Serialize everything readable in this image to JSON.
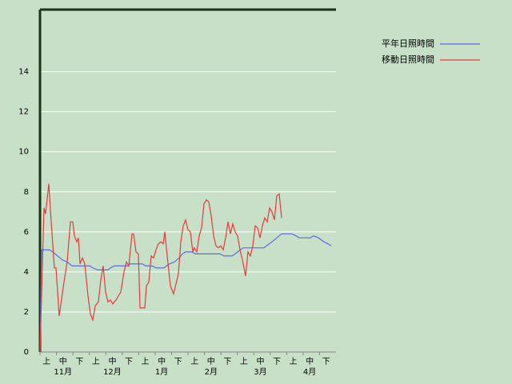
{
  "chart_data": {
    "type": "line",
    "categories": [
      "上",
      "中",
      "下",
      "上",
      "中",
      "下",
      "上",
      "中",
      "下",
      "上",
      "中",
      "下",
      "上",
      "中",
      "下",
      "上",
      "中",
      "下"
    ],
    "month_labels": [
      "11月",
      "12月",
      "1月",
      "2月",
      "3月",
      "4月"
    ],
    "xlim": [
      0,
      185
    ],
    "ylim": [
      0,
      17.1
    ],
    "yticks": [
      0,
      2,
      4,
      6,
      8,
      10,
      12,
      14
    ],
    "grid": true,
    "legend": "top-right",
    "series": [
      {
        "name": "平年日照時間",
        "color": "#5a6ee0",
        "x": [
          0,
          1,
          6,
          8,
          11,
          14,
          17,
          20,
          31,
          33,
          36,
          42.5,
          44,
          46.5,
          55,
          56,
          64,
          66,
          70,
          72.5,
          77.5,
          79,
          81,
          84,
          87,
          89,
          91,
          95,
          97,
          112.5,
          115,
          120,
          122,
          123.5,
          127,
          140,
          141.5,
          145,
          148,
          151,
          157.5,
          160,
          162,
          169,
          171,
          174,
          177.5,
          180,
          182
        ],
        "values": [
          0,
          5.1,
          5.1,
          5.0,
          4.8,
          4.6,
          4.5,
          4.3,
          4.3,
          4.2,
          4.1,
          4.1,
          4.2,
          4.3,
          4.3,
          4.4,
          4.4,
          4.3,
          4.3,
          4.2,
          4.2,
          4.3,
          4.4,
          4.5,
          4.7,
          4.9,
          5.0,
          5.0,
          4.9,
          4.9,
          4.8,
          4.8,
          4.9,
          5.0,
          5.2,
          5.2,
          5.3,
          5.5,
          5.7,
          5.9,
          5.9,
          5.8,
          5.7,
          5.7,
          5.8,
          5.7,
          5.5,
          5.4,
          5.3
        ]
      },
      {
        "name": "移動日照時間",
        "color": "#e83a3a",
        "x": [
          0,
          2.5,
          3.5,
          5.5,
          7,
          9,
          10,
          12,
          15,
          17,
          19,
          20.5,
          21.5,
          23,
          24,
          25,
          26.5,
          28,
          30,
          31.5,
          33,
          34.5,
          36.5,
          38,
          39.5,
          41,
          42.5,
          44,
          45.5,
          47.5,
          49,
          50.5,
          52.5,
          54,
          55.5,
          57.5,
          58.5,
          60,
          61.5,
          62.5,
          64,
          65.5,
          66.5,
          68,
          69.5,
          71,
          72.5,
          74,
          75.5,
          77,
          78,
          79.5,
          81.5,
          83.5,
          85,
          86.5,
          88,
          89.5,
          91,
          92.5,
          94,
          95.5,
          96.5,
          98,
          99.5,
          101,
          102.5,
          104,
          105.5,
          107,
          108.5,
          110,
          111.5,
          113,
          114.5,
          116,
          117.5,
          119,
          120.5,
          122,
          123.5,
          125,
          126.5,
          128.5,
          130,
          131.5,
          133,
          134.5,
          136,
          137.5,
          139,
          140.5,
          142,
          143.5,
          145,
          146.5,
          148,
          149.5,
          151
        ],
        "values": [
          0,
          7.2,
          6.9,
          8.4,
          6.5,
          4.2,
          4.2,
          1.8,
          3.5,
          4.5,
          6.5,
          6.5,
          5.8,
          5.5,
          5.7,
          4.4,
          4.7,
          4.4,
          2.8,
          1.9,
          1.6,
          2.3,
          2.5,
          3.6,
          4.3,
          3.0,
          2.5,
          2.6,
          2.4,
          2.6,
          2.8,
          3.0,
          4.0,
          4.5,
          4.3,
          5.9,
          5.9,
          5.0,
          4.9,
          2.2,
          2.2,
          2.2,
          3.3,
          3.5,
          4.8,
          4.7,
          5.1,
          5.4,
          5.5,
          5.4,
          6.0,
          4.8,
          3.3,
          2.9,
          3.4,
          3.9,
          5.5,
          6.3,
          6.6,
          6.1,
          6.0,
          5.0,
          5.2,
          5.0,
          5.8,
          6.2,
          7.4,
          7.6,
          7.5,
          6.8,
          5.8,
          5.3,
          5.2,
          5.3,
          5.1,
          5.7,
          6.5,
          5.9,
          6.4,
          6.0,
          5.8,
          5.1,
          4.6,
          3.8,
          5.0,
          4.8,
          5.3,
          6.3,
          6.2,
          5.7,
          6.3,
          6.7,
          6.5,
          7.2,
          7.0,
          6.6,
          7.8,
          7.9,
          6.7
        ]
      }
    ]
  }
}
